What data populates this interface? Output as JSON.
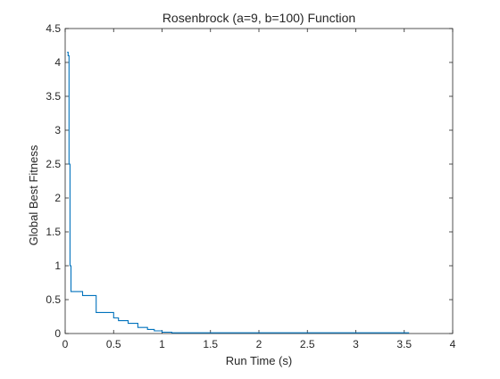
{
  "chart_data": {
    "type": "line",
    "title": "Rosenbrock (a=9, b=100) Function",
    "xlabel": "Run Time (s)",
    "ylabel": "Global Best Fitness",
    "xlim": [
      0,
      4
    ],
    "ylim": [
      0,
      4.5
    ],
    "xticks": [
      0,
      0.5,
      1,
      1.5,
      2,
      2.5,
      3,
      3.5,
      4
    ],
    "xtick_labels": [
      "0",
      "0.5",
      "1",
      "1.5",
      "2",
      "2.5",
      "3",
      "3.5",
      "4"
    ],
    "yticks": [
      0,
      0.5,
      1,
      1.5,
      2,
      2.5,
      3,
      3.5,
      4,
      4.5
    ],
    "ytick_labels": [
      "0",
      "0.5",
      "1",
      "1.5",
      "2",
      "2.5",
      "3",
      "3.5",
      "4",
      "4.5"
    ],
    "grid": false,
    "legend": "none",
    "colors": {
      "line": "#0072BD",
      "axis": "#262626",
      "background": "#ffffff"
    },
    "series": [
      {
        "step": true,
        "x": [
          0.02,
          0.03,
          0.04,
          0.05,
          0.06,
          0.08,
          0.18,
          0.32,
          0.5,
          0.55,
          0.65,
          0.75,
          0.85,
          0.92,
          1.0,
          1.1,
          1.5,
          2.0,
          2.5,
          3.0,
          3.55
        ],
        "y": [
          4.15,
          4.1,
          2.5,
          1.0,
          0.62,
          0.62,
          0.56,
          0.31,
          0.23,
          0.19,
          0.15,
          0.09,
          0.06,
          0.04,
          0.02,
          0.01,
          0.01,
          0.01,
          0.01,
          0.01,
          0.01
        ]
      }
    ]
  }
}
